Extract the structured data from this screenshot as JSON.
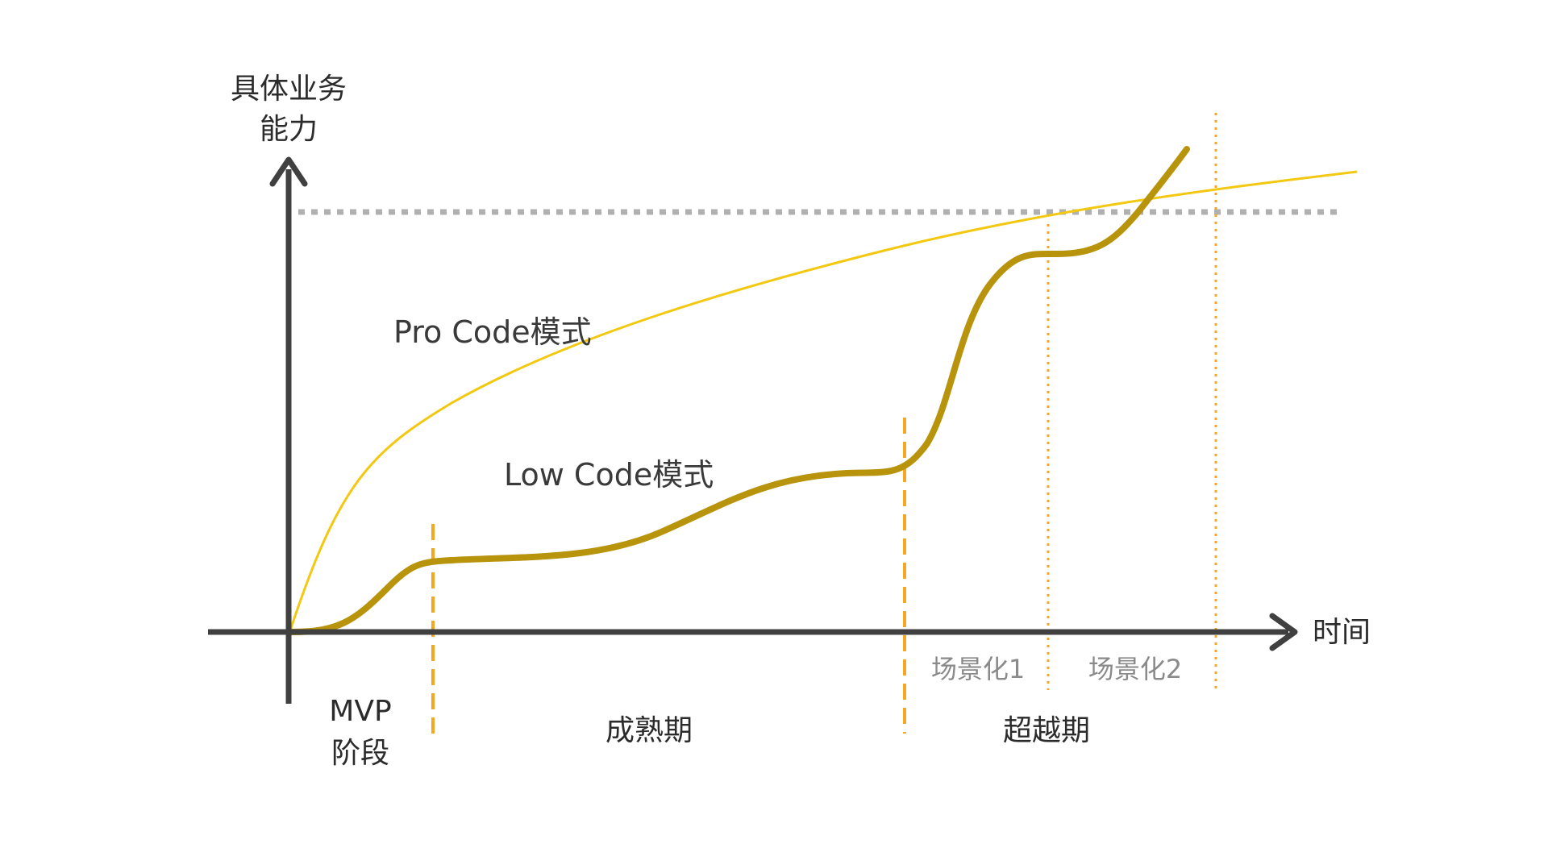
{
  "axis": {
    "y_label_line1": "具体业务",
    "y_label_line2": "能力",
    "x_label": "时间"
  },
  "curves": {
    "pro_code_label": "Pro Code模式",
    "low_code_label": "Low Code模式"
  },
  "phases": {
    "mvp_line1": "MVP",
    "mvp_line2": "阶段",
    "mature": "成熟期",
    "beyond": "超越期",
    "scenario1": "场景化1",
    "scenario2": "场景化2"
  },
  "colors": {
    "axis": "#404040",
    "pro_code": "#f2c811",
    "low_code": "#b8930c",
    "phase_divider": "#f5a623",
    "ceiling": "#b0b0b0"
  }
}
